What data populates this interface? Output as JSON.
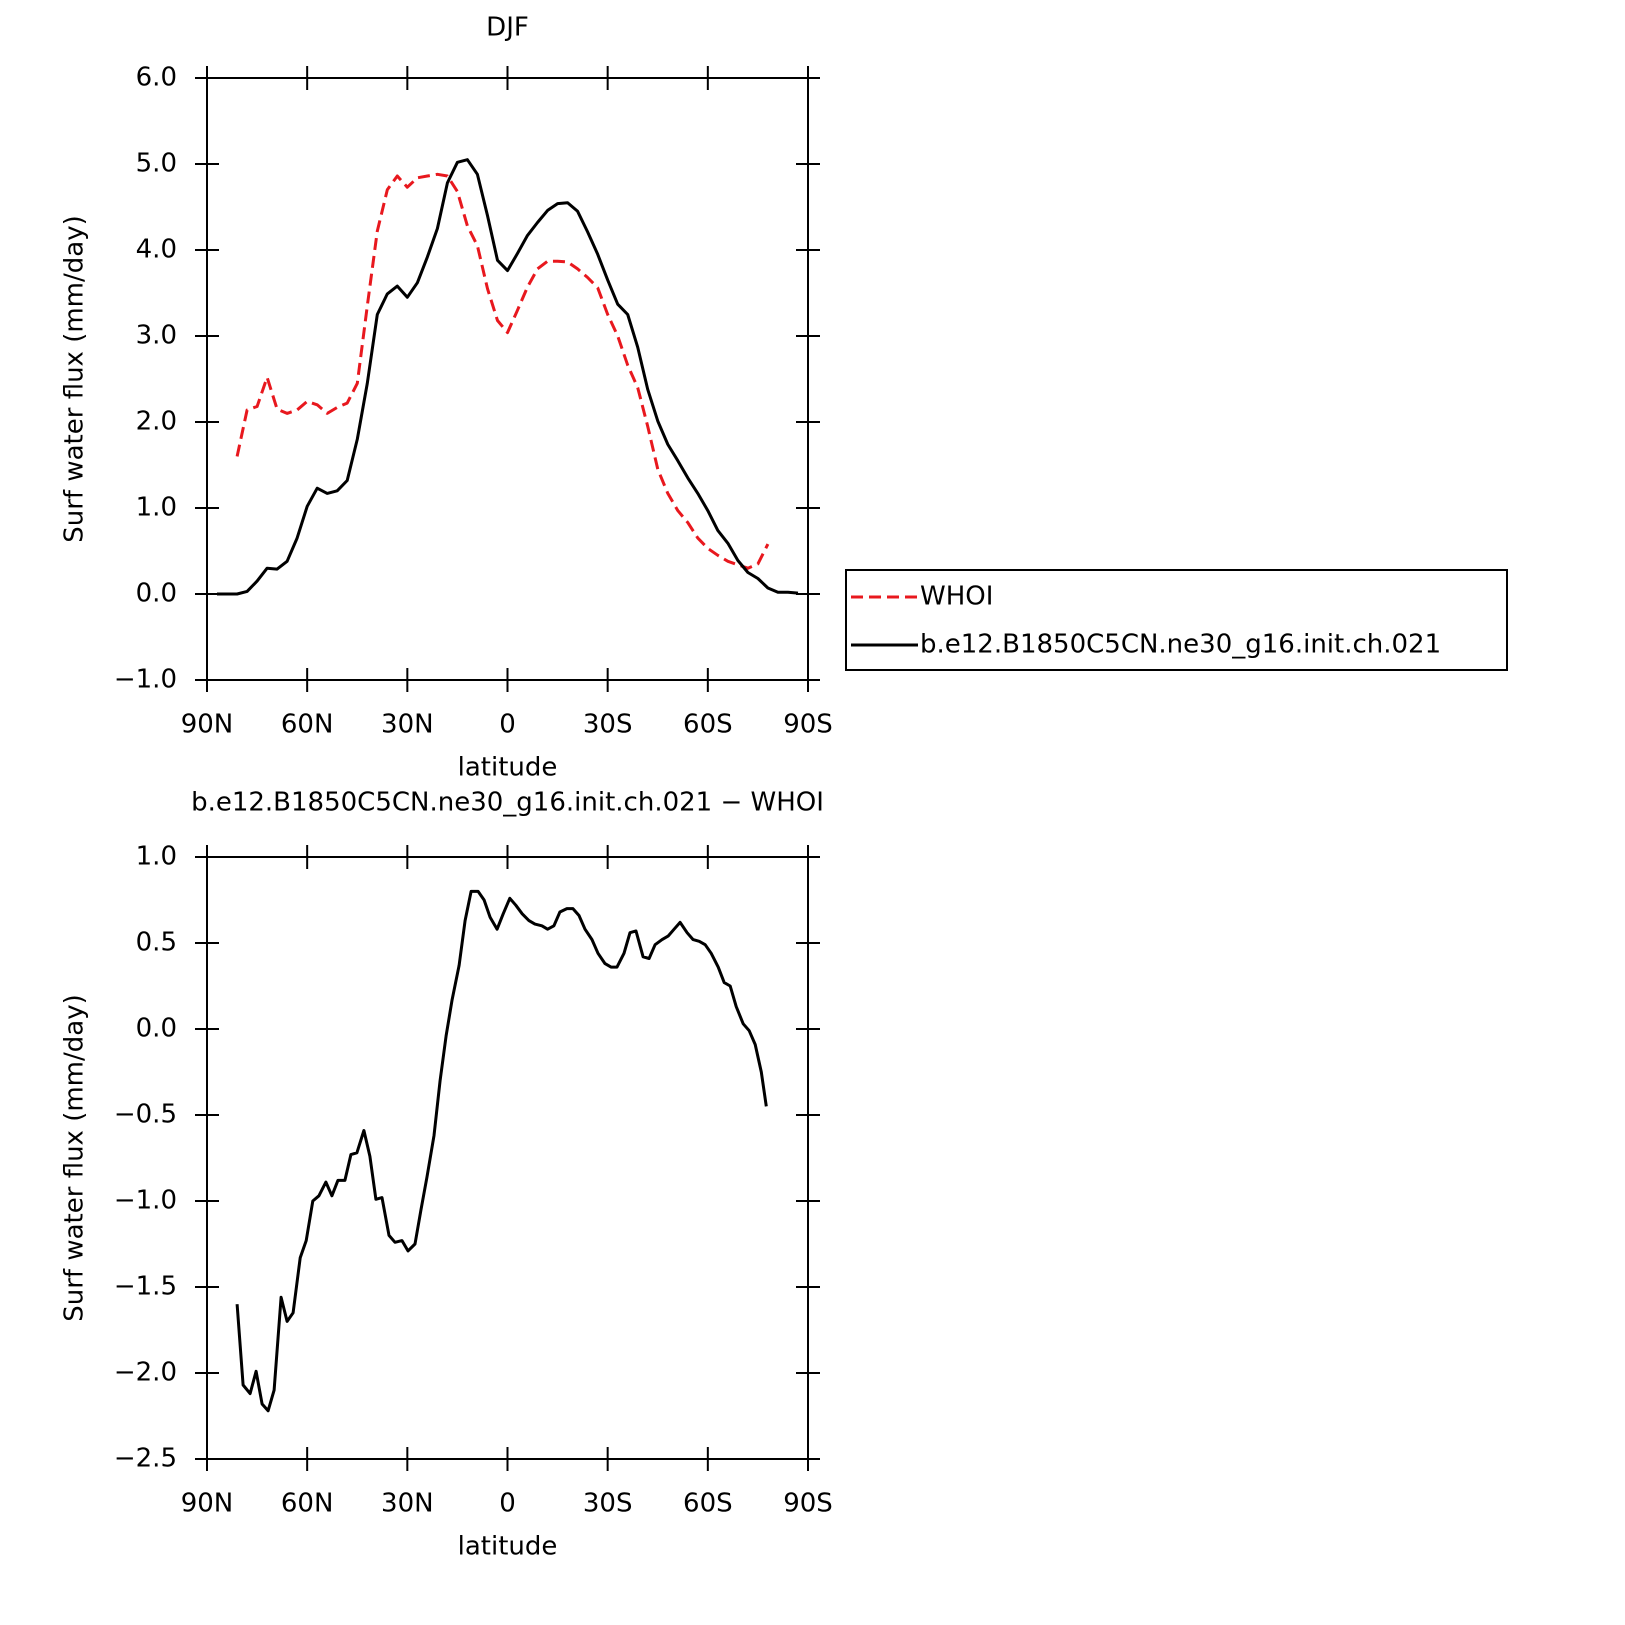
{
  "chart_data": [
    {
      "type": "line",
      "title": "DJF",
      "xlabel": "latitude",
      "ylabel": "Surf water flux (mm/day)",
      "x": [
        87,
        84,
        81,
        78,
        75,
        72,
        69,
        66,
        63,
        60,
        57,
        54,
        51,
        48,
        45,
        42,
        39,
        36,
        33,
        30,
        27,
        24,
        21,
        18,
        15,
        12,
        9,
        6,
        3,
        0,
        -3,
        -6,
        -9,
        -12,
        -15,
        -18,
        -21,
        -24,
        -27,
        -30,
        -33,
        -36,
        -39,
        -42,
        -45,
        -48,
        -51,
        -54,
        -57,
        -60,
        -63,
        -66,
        -69,
        -72,
        -75,
        -78,
        -81,
        -84,
        -87
      ],
      "series": [
        {
          "name": "WHOI",
          "color": "#e8181e",
          "dashed": true,
          "values": [
            null,
            null,
            1.6,
            2.14,
            2.18,
            2.52,
            2.15,
            2.1,
            2.14,
            2.24,
            2.2,
            2.1,
            2.17,
            2.22,
            2.45,
            3.35,
            4.22,
            4.7,
            4.86,
            4.73,
            4.84,
            4.86,
            4.88,
            4.86,
            4.68,
            4.28,
            4.05,
            3.55,
            3.18,
            3.04,
            3.3,
            3.57,
            3.78,
            3.87,
            3.87,
            3.86,
            3.78,
            3.68,
            3.56,
            3.25,
            3.0,
            2.66,
            2.4,
            1.95,
            1.45,
            1.17,
            0.97,
            0.83,
            0.65,
            0.53,
            0.45,
            0.38,
            0.34,
            0.3,
            0.35,
            0.58,
            null,
            null,
            null
          ]
        },
        {
          "name": "b.e12.B1850C5CN.ne30_g16.init.ch.021",
          "color": "#000000",
          "dashed": false,
          "values": [
            0.0,
            0.0,
            0.0,
            0.03,
            0.15,
            0.3,
            0.29,
            0.38,
            0.65,
            1.02,
            1.23,
            1.17,
            1.2,
            1.32,
            1.8,
            2.45,
            3.25,
            3.49,
            3.58,
            3.45,
            3.62,
            3.92,
            4.25,
            4.78,
            5.02,
            5.05,
            4.88,
            4.4,
            3.88,
            3.76,
            3.96,
            4.17,
            4.32,
            4.46,
            4.54,
            4.55,
            4.45,
            4.21,
            3.95,
            3.65,
            3.37,
            3.25,
            2.87,
            2.38,
            2.01,
            1.74,
            1.55,
            1.35,
            1.17,
            0.97,
            0.74,
            0.59,
            0.39,
            0.25,
            0.18,
            0.07,
            0.02,
            0.02,
            0.01
          ]
        }
      ],
      "xlim": [
        90,
        -90
      ],
      "xticks": [
        {
          "value": 90,
          "label": "90N"
        },
        {
          "value": 60,
          "label": "60N"
        },
        {
          "value": 30,
          "label": "30N"
        },
        0,
        {
          "value": -30,
          "label": "30S"
        },
        {
          "value": -60,
          "label": "60S"
        },
        {
          "value": -90,
          "label": "90S"
        }
      ],
      "ylim": [
        -1,
        6
      ],
      "yticks": [
        {
          "value": -1,
          "label": "−1.0"
        },
        {
          "value": 0,
          "label": "0.0"
        },
        {
          "value": 1,
          "label": "1.0"
        },
        {
          "value": 2,
          "label": "2.0"
        },
        {
          "value": 3,
          "label": "3.0"
        },
        {
          "value": 4,
          "label": "4.0"
        },
        {
          "value": 5,
          "label": "5.0"
        },
        {
          "value": 6,
          "label": "6.0"
        }
      ],
      "legend": "right"
    },
    {
      "type": "line",
      "title": "b.e12.B1850C5CN.ne30_g16.init.ch.021 − WHOI",
      "xlabel": "latitude",
      "ylabel": "Surf water flux (mm/day)",
      "x": [
        81,
        79.2,
        77.1,
        75.3,
        73.5,
        71.7,
        69.9,
        67.8,
        66,
        64.2,
        62.1,
        60.3,
        58.3,
        56.5,
        54.4,
        52.6,
        50.8,
        48.7,
        46.9,
        45.1,
        43,
        41.2,
        39.4,
        37.6,
        35.5,
        33.7,
        31.6,
        29.8,
        27.7,
        25.9,
        24.1,
        22,
        20.2,
        18.4,
        16.6,
        14.5,
        12.7,
        10.9,
        8.8,
        7,
        5.2,
        3.1,
        1.3,
        -0.7,
        -2.5,
        -4.4,
        -6.4,
        -8.2,
        -10.3,
        -12,
        -13.9,
        -15.7,
        -17.8,
        -19.6,
        -21.4,
        -23.2,
        -25.3,
        -27.1,
        -29.2,
        -31,
        -32.8,
        -34.9,
        -36.7,
        -38.5,
        -40.6,
        -42.4,
        -44.2,
        -46.3,
        -48.1,
        -49.9,
        -51.7,
        -53.8,
        -55.6,
        -57.4,
        -59.2,
        -61,
        -63.1,
        -64.9,
        -66.7,
        -68.5,
        -70.6,
        -72.4,
        -74.2,
        -76,
        -77.5
      ],
      "values": [
        -1.6,
        -2.07,
        -2.12,
        -1.99,
        -2.18,
        -2.22,
        -2.1,
        -1.56,
        -1.7,
        -1.65,
        -1.33,
        -1.23,
        -1.0,
        -0.97,
        -0.89,
        -0.97,
        -0.88,
        -0.88,
        -0.73,
        -0.72,
        -0.59,
        -0.74,
        -0.99,
        -0.98,
        -1.2,
        -1.24,
        -1.23,
        -1.29,
        -1.25,
        -1.05,
        -0.86,
        -0.62,
        -0.3,
        -0.04,
        0.17,
        0.37,
        0.63,
        0.8,
        0.8,
        0.75,
        0.65,
        0.58,
        0.67,
        0.76,
        0.72,
        0.67,
        0.63,
        0.61,
        0.6,
        0.58,
        0.6,
        0.68,
        0.7,
        0.7,
        0.66,
        0.58,
        0.52,
        0.44,
        0.38,
        0.36,
        0.36,
        0.44,
        0.56,
        0.57,
        0.42,
        0.41,
        0.49,
        0.52,
        0.54,
        0.58,
        0.62,
        0.56,
        0.52,
        0.51,
        0.49,
        0.44,
        0.36,
        0.27,
        0.25,
        0.13,
        0.03,
        -0.01,
        -0.09,
        -0.25,
        -0.45
      ],
      "color": "#000000",
      "xlim": [
        90,
        -90
      ],
      "xticks": [
        {
          "value": 90,
          "label": "90N"
        },
        {
          "value": 60,
          "label": "60N"
        },
        {
          "value": 30,
          "label": "30N"
        },
        0,
        {
          "value": -30,
          "label": "30S"
        },
        {
          "value": -60,
          "label": "60S"
        },
        {
          "value": -90,
          "label": "90S"
        }
      ],
      "ylim": [
        -2.5,
        1
      ],
      "yticks": [
        {
          "value": -2.5,
          "label": "−2.5"
        },
        {
          "value": -2,
          "label": "−2.0"
        },
        {
          "value": -1.5,
          "label": "−1.5"
        },
        {
          "value": -1,
          "label": "−1.0"
        },
        {
          "value": -0.5,
          "label": "−0.5"
        },
        {
          "value": 0,
          "label": "0.0"
        },
        {
          "value": 0.5,
          "label": "0.5"
        },
        {
          "value": 1,
          "label": "1.0"
        }
      ]
    }
  ]
}
